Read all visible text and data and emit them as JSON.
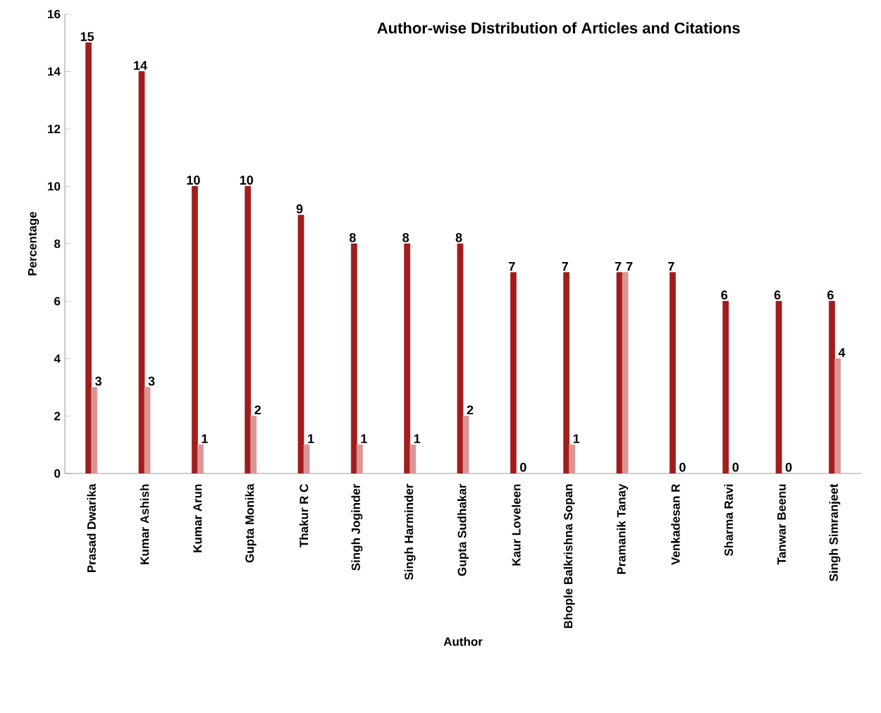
{
  "chart_data": {
    "type": "bar",
    "title": "Author-wise Distribution of Articles and Citations",
    "xlabel": "Author",
    "ylabel": "Percentage",
    "categories": [
      "Prasad Dwarika",
      "Kumar Ashish",
      "Kumar Arun",
      "Gupta Monika",
      "Thakur R C",
      "Singh Joginder",
      "Singh Harminder",
      "Gupta Sudhakar",
      "Kaur Loveleen",
      "Bhople Balkrishna Sopan",
      "Pramanik Tanay",
      "Venkadesan R",
      "Sharma Ravi",
      "Tanwar Beenu",
      "Singh Simranjeet"
    ],
    "series": [
      {
        "color": "#a11d1d",
        "values": [
          15,
          14,
          10,
          10,
          9,
          8,
          8,
          8,
          7,
          7,
          7,
          7,
          6,
          6,
          6
        ]
      },
      {
        "color": "#d99694",
        "values": [
          3,
          3,
          1,
          2,
          1,
          1,
          1,
          2,
          0,
          1,
          7,
          0,
          0,
          0,
          4
        ]
      }
    ],
    "ylim": [
      0,
      16
    ],
    "yticks": [
      0,
      2,
      4,
      6,
      8,
      10,
      12,
      14,
      16
    ],
    "data_labels": true,
    "grid": false
  }
}
